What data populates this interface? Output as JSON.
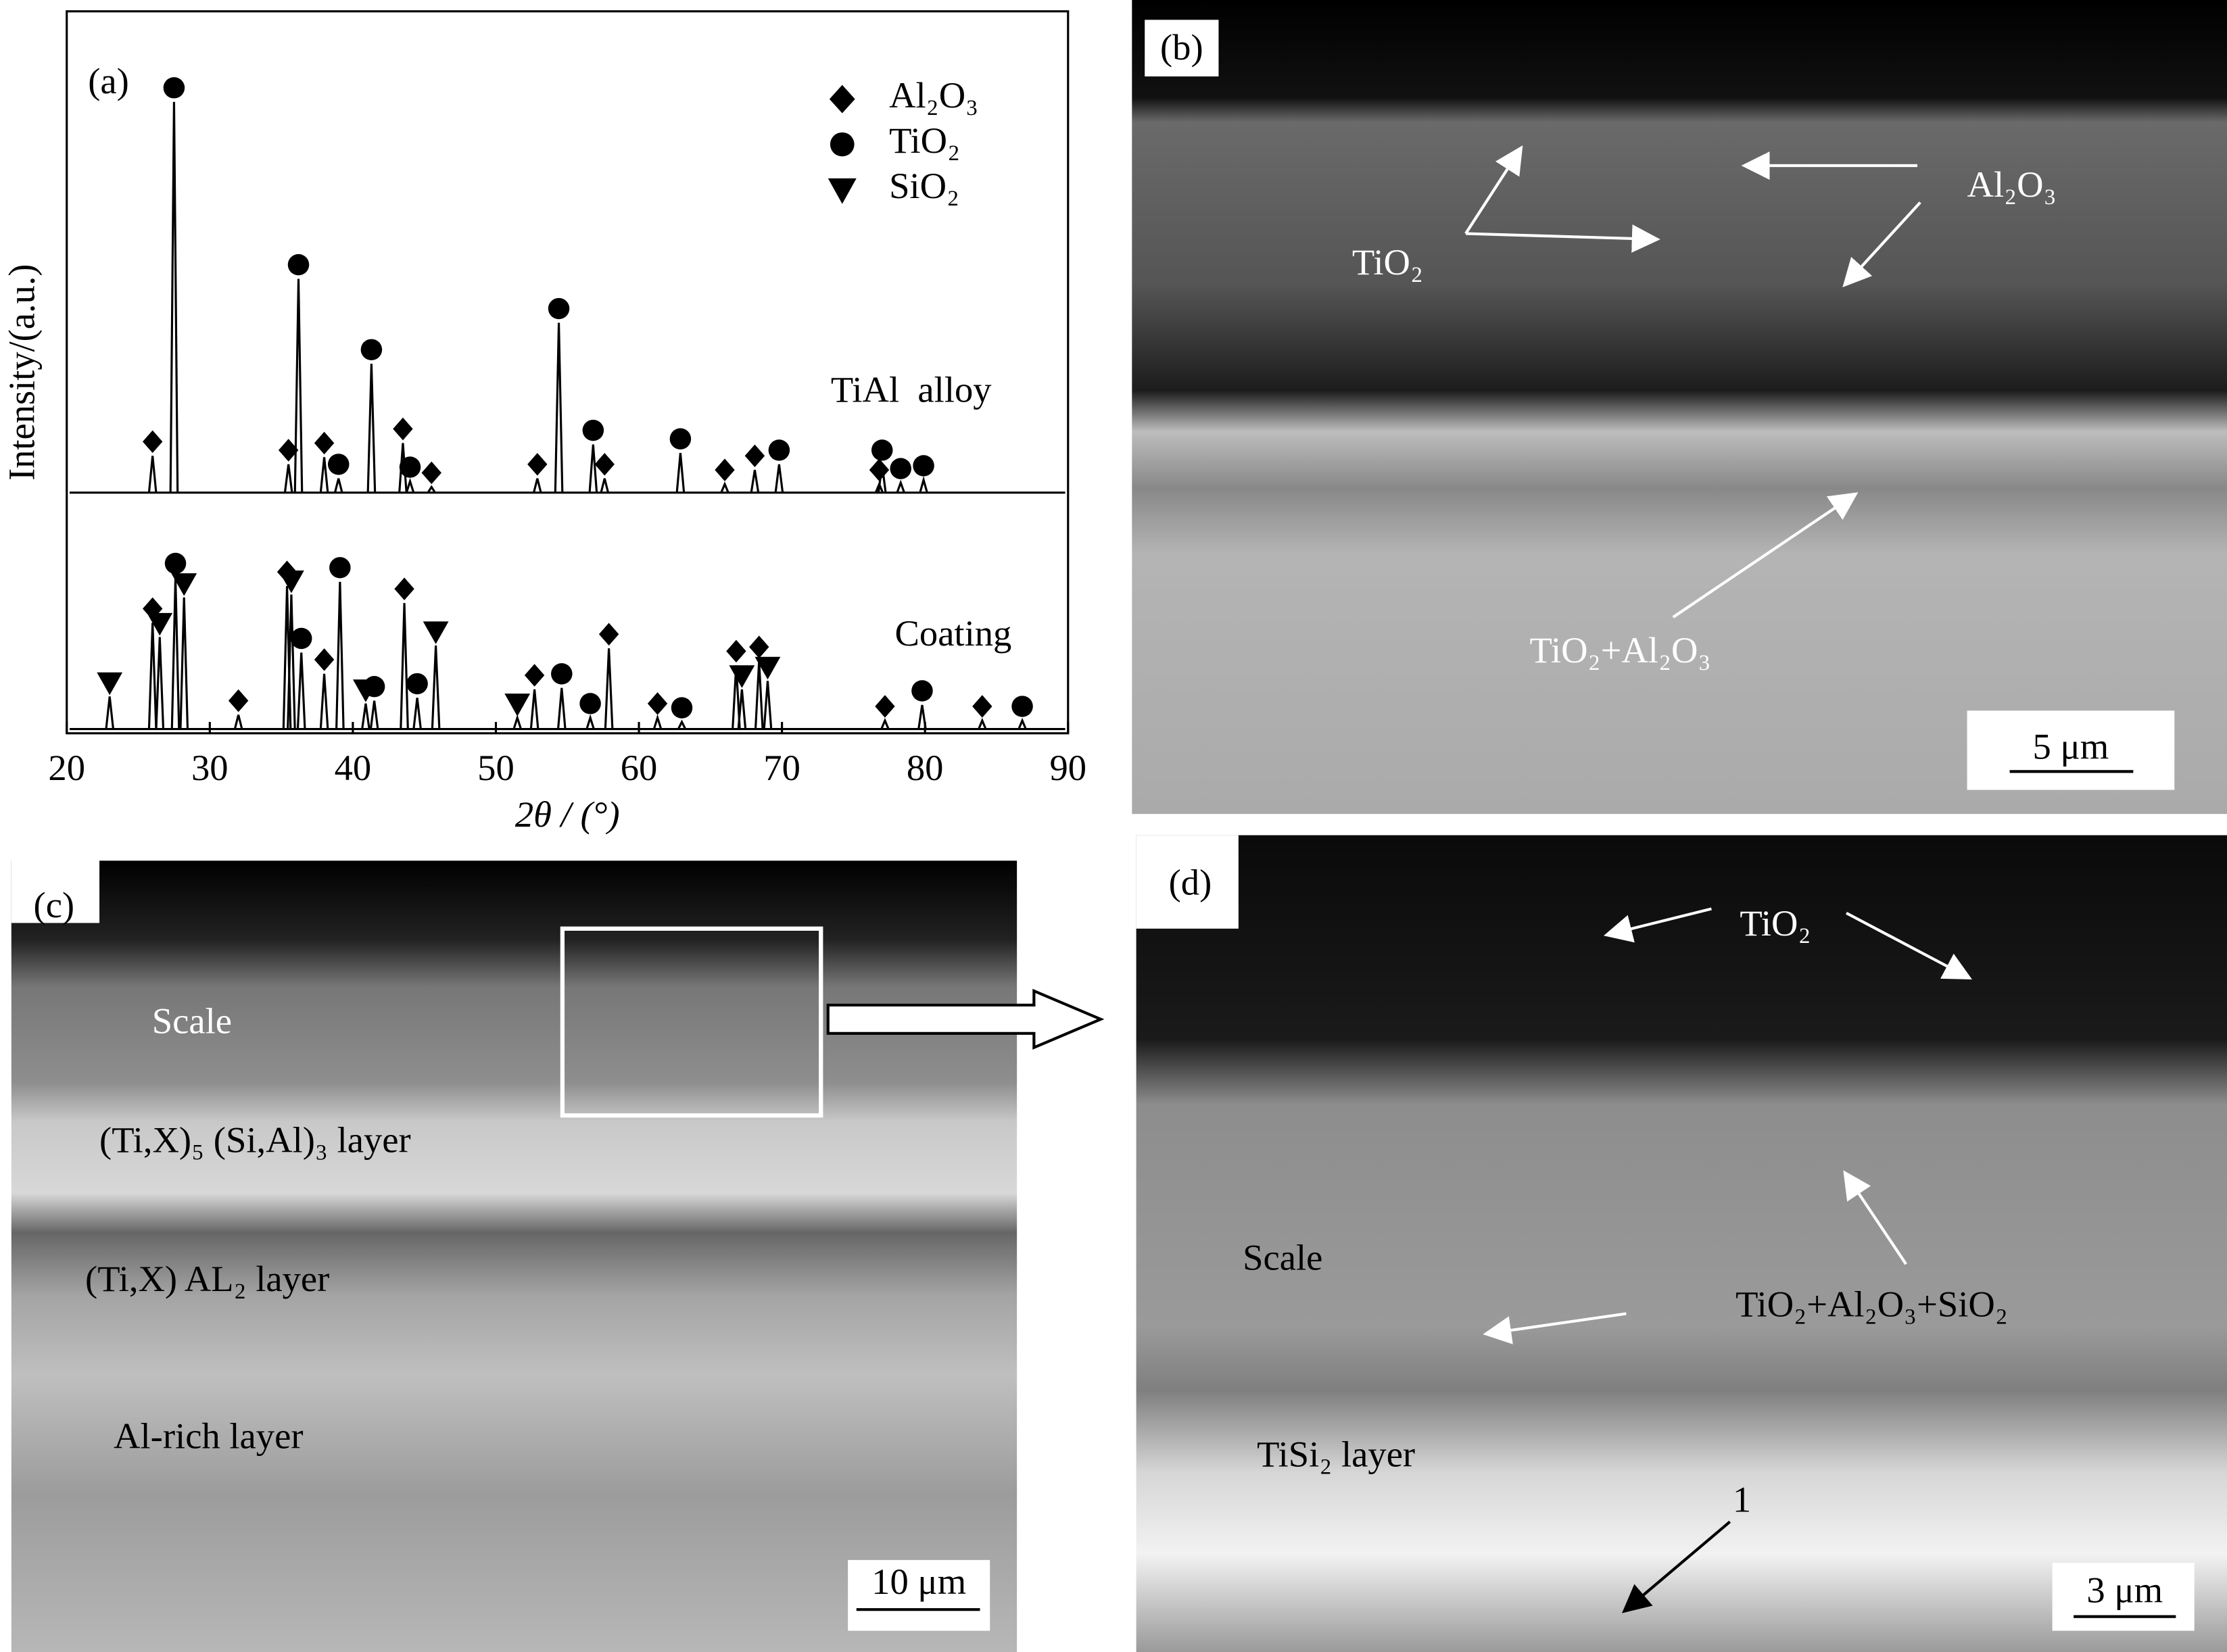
{
  "chart_data": {
    "type": "xrd",
    "panel_label": "(a)",
    "xlabel": "2θ / (°)",
    "ylabel": "Intensity/(a.u.)",
    "xlim": [
      20,
      90
    ],
    "xticks": [
      20,
      30,
      40,
      50,
      60,
      70,
      80,
      90
    ],
    "ylim": [
      0,
      510
    ],
    "color": "#000000",
    "phases": [
      {
        "name": "Al₂O₃",
        "symbol": "diamond"
      },
      {
        "name": "TiO₂",
        "symbol": "circle"
      },
      {
        "name": "SiO₂",
        "symbol": "triangle"
      }
    ],
    "series": [
      {
        "name": "TiAl  alloy",
        "baseline": 170,
        "x": [
          26.0,
          27.5,
          35.5,
          36.2,
          38.0,
          39.0,
          41.3,
          43.5,
          44.0,
          45.5,
          52.9,
          54.4,
          56.8,
          57.6,
          62.9,
          66.0,
          68.1,
          69.8,
          76.8,
          77.0,
          78.3,
          79.9
        ],
        "values": [
          196,
          446,
          190,
          321,
          195,
          180,
          261,
          205,
          178,
          174,
          180,
          290,
          204,
          180,
          198,
          176,
          186,
          190,
          176,
          190,
          177,
          179
        ],
        "phases": [
          0,
          1,
          0,
          1,
          0,
          1,
          1,
          0,
          1,
          0,
          0,
          1,
          1,
          0,
          1,
          0,
          0,
          1,
          0,
          1,
          1,
          1
        ]
      },
      {
        "name": "Coating",
        "baseline": 3,
        "x": [
          23.0,
          26.0,
          26.5,
          27.6,
          28.2,
          32.0,
          35.4,
          35.7,
          36.4,
          38.0,
          39.1,
          40.9,
          41.5,
          43.6,
          44.5,
          45.8,
          51.5,
          52.7,
          54.6,
          56.6,
          57.9,
          61.3,
          63.0,
          66.8,
          67.2,
          68.4,
          69.0,
          77.2,
          79.8,
          84.0,
          86.8
        ],
        "values": [
          26,
          78,
          68,
          110,
          96,
          13,
          104,
          98,
          57,
          42,
          107,
          21,
          23,
          92,
          25,
          62,
          11,
          31,
          32,
          11,
          60,
          11,
          8,
          48,
          31,
          51,
          37,
          9,
          20,
          9,
          9
        ],
        "phases": [
          2,
          0,
          2,
          1,
          2,
          0,
          0,
          2,
          1,
          0,
          1,
          2,
          1,
          0,
          1,
          2,
          2,
          0,
          1,
          1,
          0,
          0,
          1,
          0,
          2,
          0,
          2,
          0,
          1,
          0,
          1
        ]
      }
    ]
  },
  "panels": [
    {
      "label": "(b)",
      "annotations": [
        "TiO₂",
        "Al₂O₃",
        "TiO₂+Al₂O₃"
      ],
      "scale_bar": "5 μm"
    },
    {
      "label": "(c)",
      "annotations": [
        "Scale",
        "(Ti,X)₅ (Si,Al)₃ layer",
        "(Ti,X) AL₂ layer",
        "Al-rich layer"
      ],
      "scale_bar": "10 μm"
    },
    {
      "label": "(d)",
      "annotations": [
        "TiO₂",
        "Scale",
        "TiO₂+Al₂O₃+SiO₂",
        "TiSi₂ layer",
        "1"
      ],
      "scale_bar": "3 μm"
    }
  ]
}
